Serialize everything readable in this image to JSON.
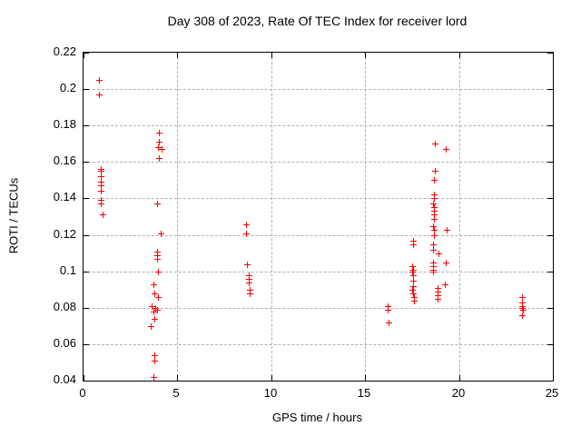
{
  "chart_data": {
    "type": "scatter",
    "title": "Day 308 of 2023, Rate Of TEC Index for receiver lord",
    "xlabel": "GPS time / hours",
    "ylabel": "ROTI / TECUs",
    "xlim": [
      0,
      25
    ],
    "ylim": [
      0.04,
      0.22
    ],
    "grid": true,
    "legend": "none",
    "xticks": [
      {
        "value": 0,
        "label": "0"
      },
      {
        "value": 5,
        "label": "5"
      },
      {
        "value": 10,
        "label": "10"
      },
      {
        "value": 15,
        "label": "15"
      },
      {
        "value": 20,
        "label": "20"
      },
      {
        "value": 25,
        "label": "25"
      }
    ],
    "yticks": [
      {
        "value": 0.22,
        "label": "0.22"
      },
      {
        "value": 0.2,
        "label": "0.2"
      },
      {
        "value": 0.18,
        "label": "0.18"
      },
      {
        "value": 0.16,
        "label": "0.16"
      },
      {
        "value": 0.14,
        "label": "0.14"
      },
      {
        "value": 0.12,
        "label": "0.12"
      },
      {
        "value": 0.1,
        "label": "0.1"
      },
      {
        "value": 0.08,
        "label": "0.08"
      },
      {
        "value": 0.06,
        "label": "0.06"
      },
      {
        "value": 0.04,
        "label": "0.04"
      }
    ],
    "marker": {
      "shape": "plus",
      "size": 7
    },
    "colors": {
      "marker": "#ff0000",
      "grid": "#b0b0b0",
      "axis": "#000000",
      "text": "#000000",
      "background": "#ffffff"
    },
    "series": [
      {
        "name": "ROTI",
        "points": [
          [
            0.8,
            0.205
          ],
          [
            0.8,
            0.197
          ],
          [
            0.9,
            0.156
          ],
          [
            0.92,
            0.155
          ],
          [
            0.9,
            0.152
          ],
          [
            0.9,
            0.149
          ],
          [
            0.9,
            0.147
          ],
          [
            0.9,
            0.144
          ],
          [
            0.9,
            0.139
          ],
          [
            0.92,
            0.137
          ],
          [
            1.0,
            0.131
          ],
          [
            4.0,
            0.176
          ],
          [
            4.0,
            0.171
          ],
          [
            3.95,
            0.168
          ],
          [
            4.15,
            0.167
          ],
          [
            4.0,
            0.162
          ],
          [
            3.9,
            0.137
          ],
          [
            4.1,
            0.121
          ],
          [
            3.9,
            0.111
          ],
          [
            3.9,
            0.109
          ],
          [
            3.9,
            0.107
          ],
          [
            3.95,
            0.1
          ],
          [
            3.7,
            0.093
          ],
          [
            3.75,
            0.088
          ],
          [
            3.95,
            0.086
          ],
          [
            3.65,
            0.081
          ],
          [
            3.8,
            0.08
          ],
          [
            3.9,
            0.079
          ],
          [
            3.7,
            0.078
          ],
          [
            3.75,
            0.074
          ],
          [
            3.6,
            0.07
          ],
          [
            3.75,
            0.054
          ],
          [
            3.75,
            0.051
          ],
          [
            3.7,
            0.042
          ],
          [
            8.65,
            0.126
          ],
          [
            8.65,
            0.121
          ],
          [
            8.7,
            0.104
          ],
          [
            8.8,
            0.098
          ],
          [
            8.8,
            0.096
          ],
          [
            8.8,
            0.094
          ],
          [
            8.85,
            0.09
          ],
          [
            8.85,
            0.088
          ],
          [
            16.2,
            0.081
          ],
          [
            16.2,
            0.079
          ],
          [
            16.25,
            0.072
          ],
          [
            17.55,
            0.117
          ],
          [
            17.55,
            0.115
          ],
          [
            17.5,
            0.103
          ],
          [
            17.55,
            0.101
          ],
          [
            17.5,
            0.1
          ],
          [
            17.55,
            0.098
          ],
          [
            17.55,
            0.095
          ],
          [
            17.55,
            0.092
          ],
          [
            17.5,
            0.09
          ],
          [
            17.55,
            0.088
          ],
          [
            17.6,
            0.086
          ],
          [
            17.6,
            0.084
          ],
          [
            18.7,
            0.17
          ],
          [
            18.7,
            0.155
          ],
          [
            18.65,
            0.15
          ],
          [
            18.65,
            0.142
          ],
          [
            18.65,
            0.14
          ],
          [
            18.6,
            0.137
          ],
          [
            18.65,
            0.135
          ],
          [
            18.65,
            0.133
          ],
          [
            18.65,
            0.131
          ],
          [
            18.65,
            0.129
          ],
          [
            18.6,
            0.125
          ],
          [
            18.65,
            0.123
          ],
          [
            18.65,
            0.12
          ],
          [
            18.6,
            0.115
          ],
          [
            18.6,
            0.112
          ],
          [
            18.9,
            0.11
          ],
          [
            18.6,
            0.105
          ],
          [
            18.6,
            0.103
          ],
          [
            18.6,
            0.101
          ],
          [
            18.6,
            0.1
          ],
          [
            18.85,
            0.091
          ],
          [
            18.85,
            0.089
          ],
          [
            18.85,
            0.087
          ],
          [
            18.85,
            0.085
          ],
          [
            19.3,
            0.167
          ],
          [
            19.35,
            0.123
          ],
          [
            19.3,
            0.105
          ],
          [
            19.25,
            0.093
          ],
          [
            23.35,
            0.086
          ],
          [
            23.35,
            0.083
          ],
          [
            23.35,
            0.081
          ],
          [
            23.35,
            0.08
          ],
          [
            23.4,
            0.079
          ],
          [
            23.35,
            0.076
          ]
        ]
      }
    ]
  }
}
